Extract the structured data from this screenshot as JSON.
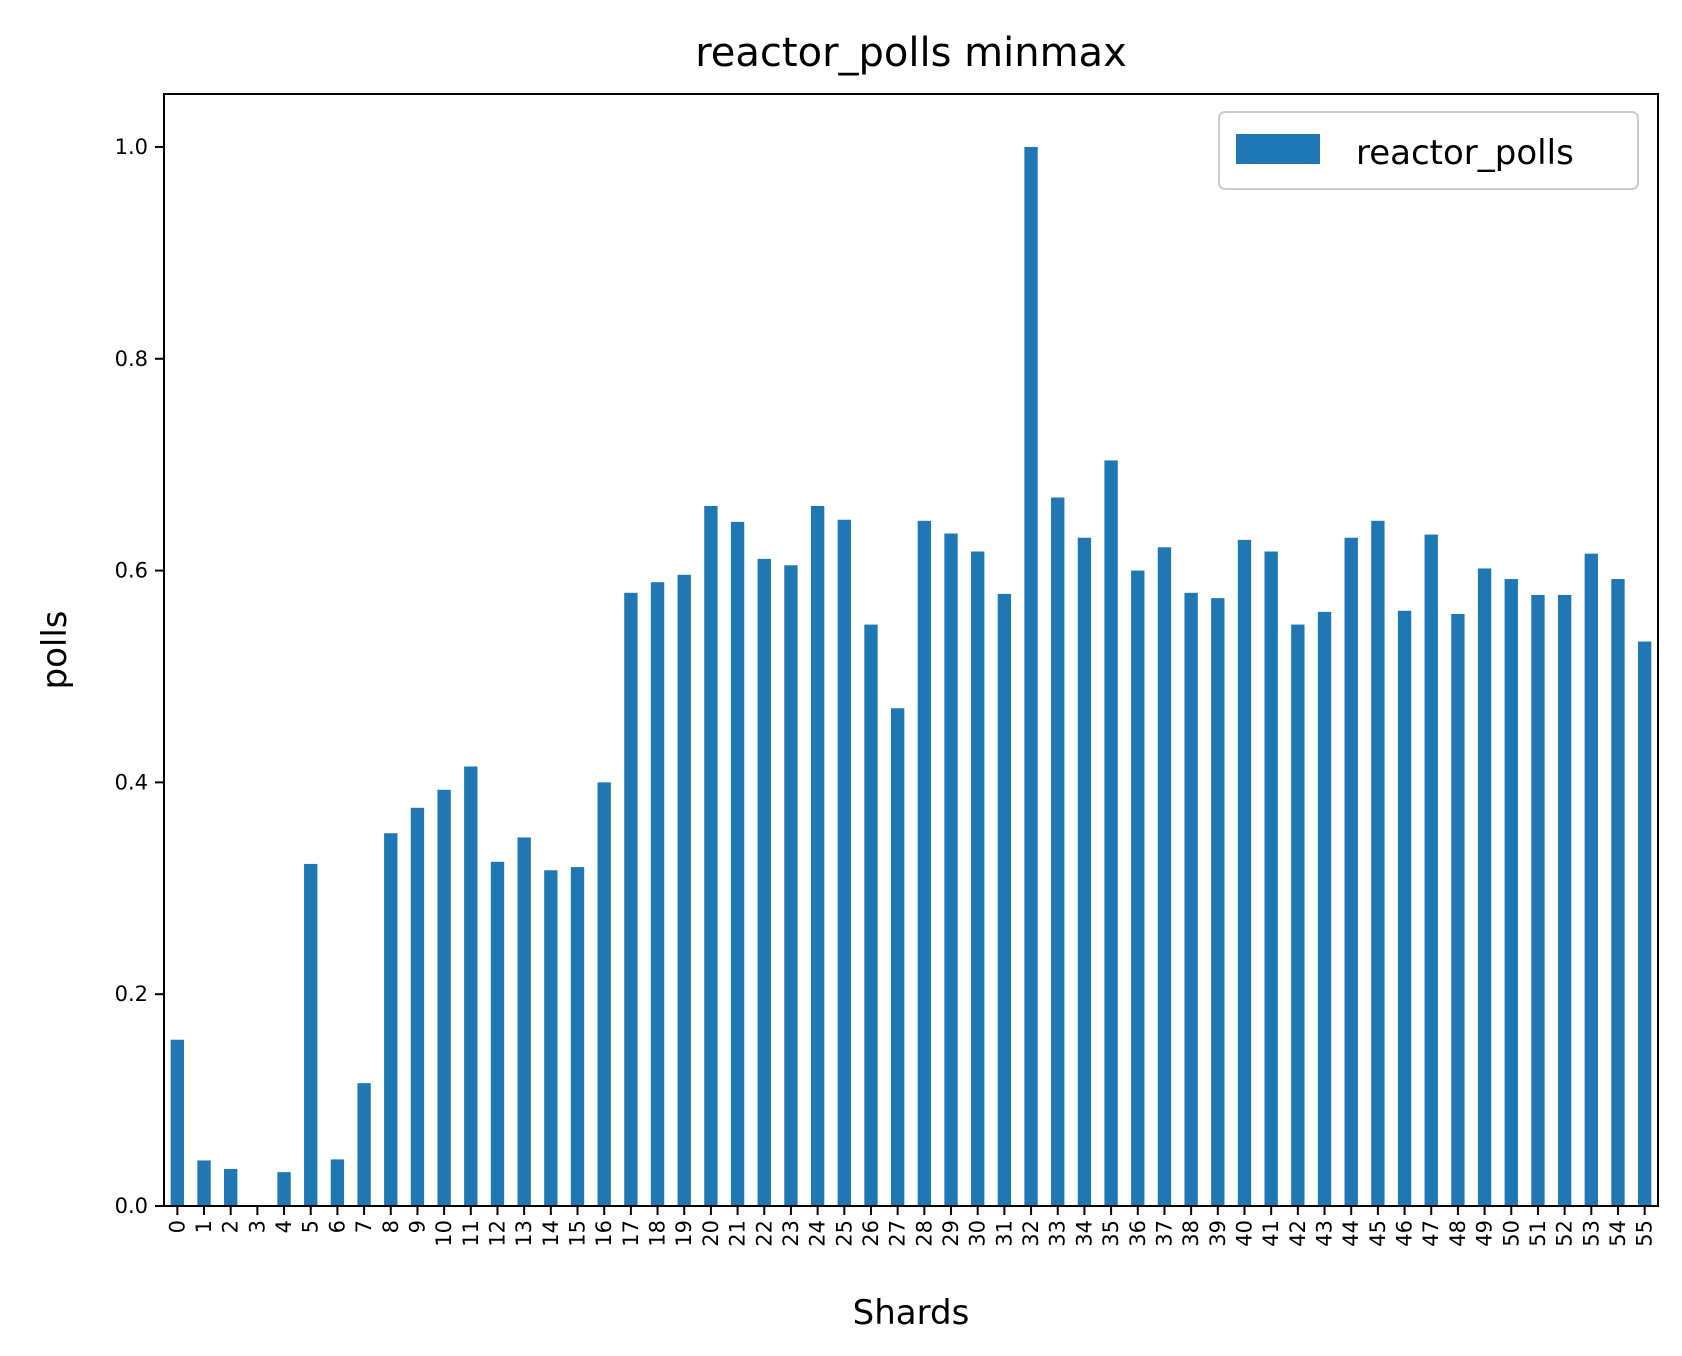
{
  "chart_data": {
    "type": "bar",
    "title": "reactor_polls minmax",
    "xlabel": "Shards",
    "ylabel": "polls",
    "ylim": [
      0,
      1.05
    ],
    "yticks": [
      "0.0",
      "0.2",
      "0.4",
      "0.6",
      "0.8",
      "1.0"
    ],
    "legend": {
      "position": "top-right"
    },
    "categories": [
      "0",
      "1",
      "2",
      "3",
      "4",
      "5",
      "6",
      "7",
      "8",
      "9",
      "10",
      "11",
      "12",
      "13",
      "14",
      "15",
      "16",
      "17",
      "18",
      "19",
      "20",
      "21",
      "22",
      "23",
      "24",
      "25",
      "26",
      "27",
      "28",
      "29",
      "30",
      "31",
      "32",
      "33",
      "34",
      "35",
      "36",
      "37",
      "38",
      "39",
      "40",
      "41",
      "42",
      "43",
      "44",
      "45",
      "46",
      "47",
      "48",
      "49",
      "50",
      "51",
      "52",
      "53",
      "54",
      "55"
    ],
    "series": [
      {
        "name": "reactor_polls",
        "color": "#1f77b4",
        "values": [
          0.157,
          0.043,
          0.035,
          0.0,
          0.032,
          0.323,
          0.044,
          0.116,
          0.352,
          0.376,
          0.393,
          0.415,
          0.325,
          0.348,
          0.317,
          0.32,
          0.4,
          0.579,
          0.589,
          0.596,
          0.661,
          0.646,
          0.611,
          0.605,
          0.661,
          0.648,
          0.549,
          0.47,
          0.647,
          0.635,
          0.618,
          0.578,
          1.0,
          0.669,
          0.631,
          0.704,
          0.6,
          0.622,
          0.579,
          0.574,
          0.629,
          0.618,
          0.549,
          0.561,
          0.631,
          0.647,
          0.562,
          0.634,
          0.559,
          0.602,
          0.592,
          0.577,
          0.577,
          0.616,
          0.592,
          0.533
        ]
      }
    ]
  }
}
